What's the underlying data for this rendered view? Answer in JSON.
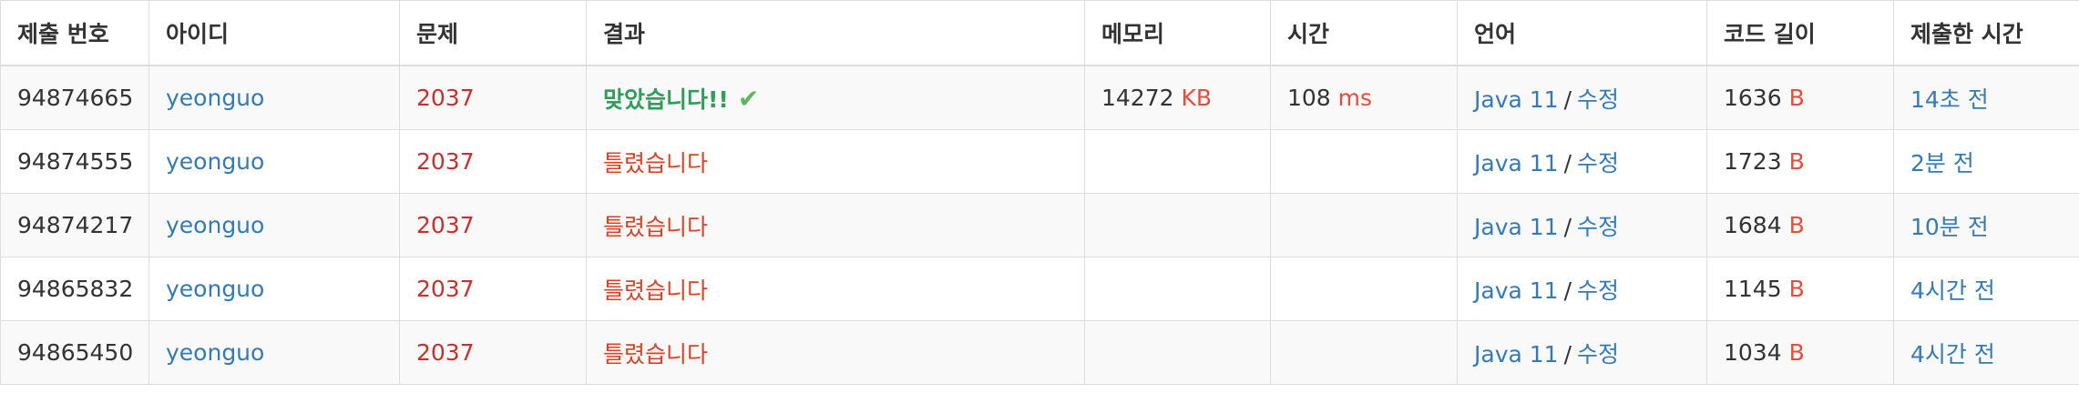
{
  "headers": {
    "submission_id": "제출 번호",
    "user_id": "아이디",
    "problem": "문제",
    "result": "결과",
    "memory": "메모리",
    "time": "시간",
    "language": "언어",
    "code_length": "코드 길이",
    "submitted_at": "제출한 시간"
  },
  "rows": [
    {
      "submission_id": "94874665",
      "user_id": "yeonguo",
      "problem": "2037",
      "result": "맞았습니다!!",
      "result_type": "accepted",
      "memory": "14272",
      "memory_unit": "KB",
      "time": "108",
      "time_unit": "ms",
      "language": "Java 11",
      "separator": "/",
      "edit": "수정",
      "code_length": "1636",
      "code_unit": "B",
      "submitted_at": "14초 전"
    },
    {
      "submission_id": "94874555",
      "user_id": "yeonguo",
      "problem": "2037",
      "result": "틀렸습니다",
      "result_type": "wrong",
      "memory": "",
      "memory_unit": "",
      "time": "",
      "time_unit": "",
      "language": "Java 11",
      "separator": "/",
      "edit": "수정",
      "code_length": "1723",
      "code_unit": "B",
      "submitted_at": "2분 전"
    },
    {
      "submission_id": "94874217",
      "user_id": "yeonguo",
      "problem": "2037",
      "result": "틀렸습니다",
      "result_type": "wrong",
      "memory": "",
      "memory_unit": "",
      "time": "",
      "time_unit": "",
      "language": "Java 11",
      "separator": "/",
      "edit": "수정",
      "code_length": "1684",
      "code_unit": "B",
      "submitted_at": "10분 전"
    },
    {
      "submission_id": "94865832",
      "user_id": "yeonguo",
      "problem": "2037",
      "result": "틀렸습니다",
      "result_type": "wrong",
      "memory": "",
      "memory_unit": "",
      "time": "",
      "time_unit": "",
      "language": "Java 11",
      "separator": "/",
      "edit": "수정",
      "code_length": "1145",
      "code_unit": "B",
      "submitted_at": "4시간 전"
    },
    {
      "submission_id": "94865450",
      "user_id": "yeonguo",
      "problem": "2037",
      "result": "틀렸습니다",
      "result_type": "wrong",
      "memory": "",
      "memory_unit": "",
      "time": "",
      "time_unit": "",
      "language": "Java 11",
      "separator": "/",
      "edit": "수정",
      "code_length": "1034",
      "code_unit": "B",
      "submitted_at": "4시간 전"
    }
  ],
  "icons": {
    "accepted": "checkmark-icon"
  },
  "colors": {
    "link_blue": "#337ab7",
    "problem_red": "#c9302c",
    "unit_red": "#e74c3c",
    "accepted_green": "#2f9e5c",
    "wrong_red": "#dd4124",
    "check_green": "#5cb85c"
  }
}
